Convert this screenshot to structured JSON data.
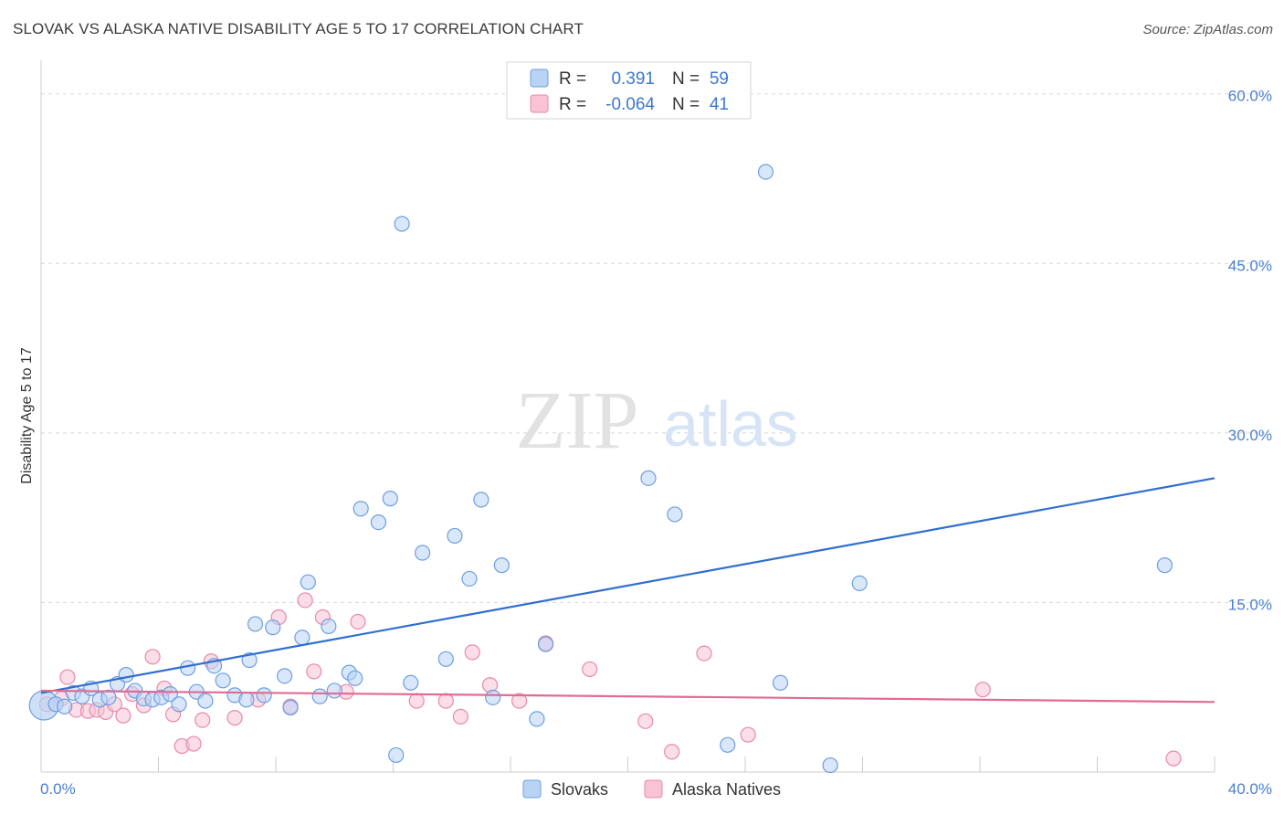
{
  "title": "SLOVAK VS ALASKA NATIVE DISABILITY AGE 5 TO 17 CORRELATION CHART",
  "source": "Source: ZipAtlas.com",
  "watermark": {
    "zip": "ZIP",
    "atlas": "atlas"
  },
  "colors": {
    "slovaks_fill": "#b9d3f5",
    "slovaks_stroke": "#6d9fe0",
    "slovaks_line": "#2f6fd0",
    "natives_fill": "#f8c3d4",
    "natives_stroke": "#e88aa8",
    "natives_line": "#e06b95",
    "tick_label": "#4a7fd0",
    "grid": "#d8d8d8"
  },
  "legend": {
    "rows": [
      {
        "r_label": "R =",
        "r_value": "0.391",
        "n_label": "N =",
        "n_value": "59"
      },
      {
        "r_label": "R =",
        "r_value": "-0.064",
        "n_label": "N =",
        "n_value": "41"
      }
    ]
  },
  "chart_data": {
    "type": "scatter",
    "title": "SLOVAK VS ALASKA NATIVE DISABILITY AGE 5 TO 17 CORRELATION CHART",
    "xlabel": "",
    "ylabel": "Disability Age 5 to 17",
    "xlim": [
      0,
      40
    ],
    "ylim": [
      0,
      62
    ],
    "x_tick_labels": [
      "0.0%",
      "40.0%"
    ],
    "y_ticks": [
      15,
      30,
      45,
      60
    ],
    "y_tick_labels": [
      "15.0%",
      "30.0%",
      "45.0%",
      "60.0%"
    ],
    "grid": true,
    "legend_position": "top-center and bottom",
    "series": [
      {
        "name": "Slovaks",
        "r": 0.391,
        "n": 59,
        "trend": {
          "x": [
            0,
            40
          ],
          "y": [
            7.0,
            26.0
          ]
        },
        "points": [
          [
            0.1,
            5.9
          ],
          [
            0.5,
            6.0
          ],
          [
            0.8,
            5.8
          ],
          [
            1.1,
            7.0
          ],
          [
            1.4,
            6.7
          ],
          [
            1.7,
            7.4
          ],
          [
            2.0,
            6.4
          ],
          [
            2.3,
            6.6
          ],
          [
            2.6,
            7.8
          ],
          [
            2.9,
            8.6
          ],
          [
            3.2,
            7.2
          ],
          [
            3.5,
            6.5
          ],
          [
            3.8,
            6.4
          ],
          [
            4.1,
            6.6
          ],
          [
            4.4,
            6.9
          ],
          [
            4.7,
            6.0
          ],
          [
            5.0,
            9.2
          ],
          [
            5.3,
            7.1
          ],
          [
            5.6,
            6.3
          ],
          [
            5.9,
            9.4
          ],
          [
            6.2,
            8.1
          ],
          [
            6.6,
            6.8
          ],
          [
            7.0,
            6.4
          ],
          [
            7.1,
            9.9
          ],
          [
            7.3,
            13.1
          ],
          [
            7.6,
            6.8
          ],
          [
            7.9,
            12.8
          ],
          [
            8.3,
            8.5
          ],
          [
            8.5,
            5.7
          ],
          [
            8.9,
            11.9
          ],
          [
            9.1,
            16.8
          ],
          [
            9.5,
            6.7
          ],
          [
            9.8,
            12.9
          ],
          [
            10.0,
            7.2
          ],
          [
            10.5,
            8.8
          ],
          [
            10.7,
            8.3
          ],
          [
            10.9,
            23.3
          ],
          [
            11.5,
            22.1
          ],
          [
            11.9,
            24.2
          ],
          [
            12.1,
            1.5
          ],
          [
            12.3,
            48.5
          ],
          [
            12.6,
            7.9
          ],
          [
            13.0,
            19.4
          ],
          [
            13.8,
            10.0
          ],
          [
            14.1,
            20.9
          ],
          [
            14.6,
            17.1
          ],
          [
            15.0,
            24.1
          ],
          [
            15.4,
            6.6
          ],
          [
            15.7,
            18.3
          ],
          [
            16.9,
            4.7
          ],
          [
            17.2,
            11.3
          ],
          [
            20.7,
            26.0
          ],
          [
            21.6,
            22.8
          ],
          [
            23.4,
            2.4
          ],
          [
            24.7,
            53.1
          ],
          [
            25.2,
            7.9
          ],
          [
            26.9,
            0.6
          ],
          [
            27.9,
            16.7
          ],
          [
            38.3,
            18.3
          ]
        ]
      },
      {
        "name": "Alaska Natives",
        "r": -0.064,
        "n": 41,
        "trend": {
          "x": [
            0,
            40
          ],
          "y": [
            7.2,
            6.2
          ]
        },
        "points": [
          [
            0.2,
            6.0
          ],
          [
            0.7,
            6.5
          ],
          [
            0.9,
            8.4
          ],
          [
            1.2,
            5.5
          ],
          [
            1.6,
            5.4
          ],
          [
            1.9,
            5.5
          ],
          [
            2.2,
            5.3
          ],
          [
            2.5,
            6.0
          ],
          [
            2.8,
            5.0
          ],
          [
            3.1,
            6.9
          ],
          [
            3.5,
            5.9
          ],
          [
            3.8,
            10.2
          ],
          [
            4.2,
            7.4
          ],
          [
            4.5,
            5.1
          ],
          [
            4.8,
            2.3
          ],
          [
            5.2,
            2.5
          ],
          [
            5.5,
            4.6
          ],
          [
            5.8,
            9.8
          ],
          [
            6.6,
            4.8
          ],
          [
            7.4,
            6.4
          ],
          [
            8.1,
            13.7
          ],
          [
            8.5,
            5.8
          ],
          [
            9.0,
            15.2
          ],
          [
            9.3,
            8.9
          ],
          [
            9.6,
            13.7
          ],
          [
            10.4,
            7.1
          ],
          [
            10.8,
            13.3
          ],
          [
            12.8,
            6.3
          ],
          [
            13.8,
            6.3
          ],
          [
            14.3,
            4.9
          ],
          [
            14.7,
            10.6
          ],
          [
            15.3,
            7.7
          ],
          [
            16.3,
            6.3
          ],
          [
            17.2,
            11.4
          ],
          [
            18.7,
            9.1
          ],
          [
            20.6,
            4.5
          ],
          [
            21.5,
            1.8
          ],
          [
            22.6,
            10.5
          ],
          [
            24.1,
            3.3
          ],
          [
            32.1,
            7.3
          ],
          [
            38.6,
            1.2
          ]
        ]
      }
    ]
  }
}
